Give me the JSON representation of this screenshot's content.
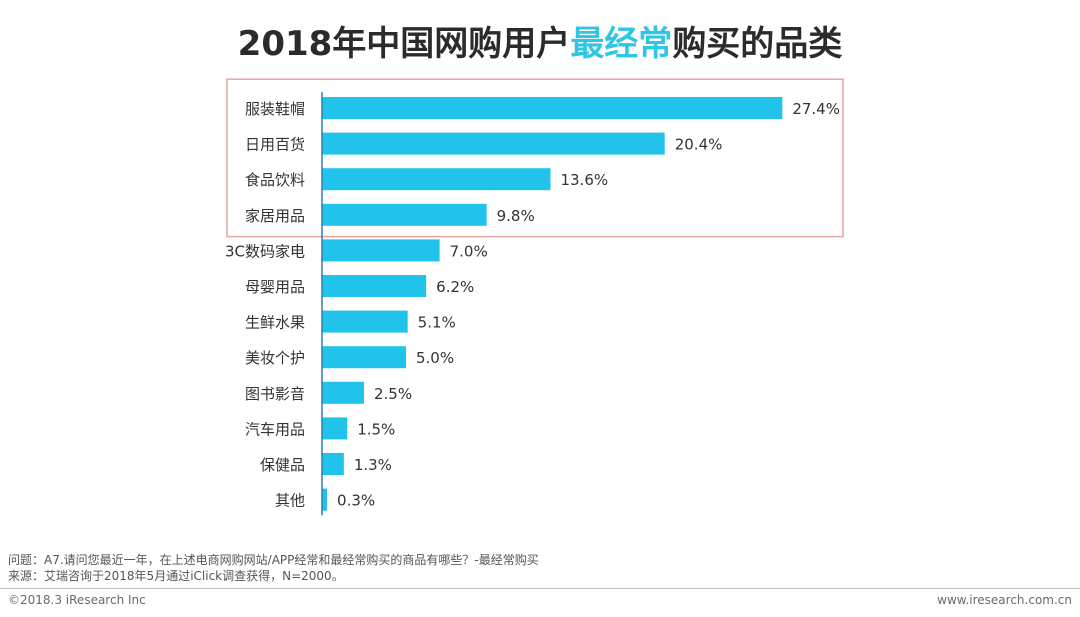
{
  "page": {
    "title_prefix": "2018年中国网购用户",
    "title_highlight": "最经常",
    "title_suffix": "购买的品类",
    "highlight_color": "#2fc6e3",
    "bar_color": "#22c3ea",
    "box_color": "#e8a3a3",
    "question_label": "问题：",
    "question_text": "A7.请问您最近一年，在上述电商网购网站/APP经常和最经常购买的商品有哪些？-最经常购买",
    "source_label": "来源：",
    "source_text": "艾瑞咨询于2018年5月通过iClick调查获得，N=2000。",
    "copyright": "©2018.3 iResearch Inc",
    "website": "www.iresearch.com.cn"
  },
  "chart_data": {
    "type": "bar",
    "orientation": "horizontal",
    "title": "2018年中国网购用户最经常购买的品类",
    "categories": [
      "服装鞋帽",
      "日用百货",
      "食品饮料",
      "家居用品",
      "3C数码家电",
      "母婴用品",
      "生鲜水果",
      "美妆个护",
      "图书影音",
      "汽车用品",
      "保健品",
      "其他"
    ],
    "values": [
      27.4,
      20.4,
      13.6,
      9.8,
      7.0,
      6.2,
      5.1,
      5.0,
      2.5,
      1.5,
      1.3,
      0.3
    ],
    "value_labels": [
      "27.4%",
      "20.4%",
      "13.6%",
      "9.8%",
      "7.0%",
      "6.2%",
      "5.1%",
      "5.0%",
      "2.5%",
      "1.5%",
      "1.3%",
      "0.3%"
    ],
    "unit": "%",
    "highlighted_count": 4,
    "grid": false,
    "legend": "none"
  }
}
